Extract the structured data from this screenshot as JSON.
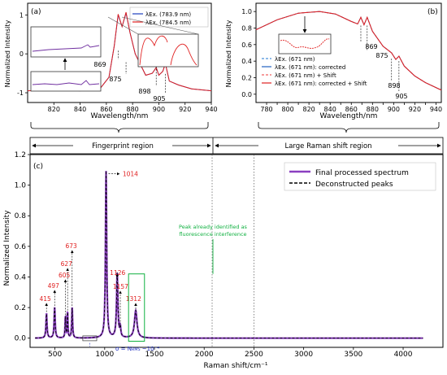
{
  "chart_data": [
    {
      "panel_label": "(a)",
      "type": "line",
      "xlabel": "Wavelength/nm",
      "ylabel": "Normalized Intensity",
      "xlim": [
        800,
        940
      ],
      "ylim": [
        -1.25,
        1.3
      ],
      "xticks": [
        820,
        840,
        860,
        880,
        900,
        920,
        940
      ],
      "yticks": [
        -1,
        0,
        1
      ],
      "legend_position": "top-right",
      "series": [
        {
          "name": "λEx. (783.9 nm)",
          "color": "#1f3fbf",
          "x": [
            800,
            820,
            840,
            855,
            862,
            866,
            869,
            872,
            875,
            878,
            882,
            890,
            895,
            898,
            900,
            903,
            905,
            908,
            915,
            925,
            940
          ],
          "y": [
            -0.95,
            -0.92,
            -0.95,
            -0.9,
            -0.6,
            0.2,
            1.0,
            0.7,
            1.05,
            0.55,
            0.0,
            -0.55,
            -0.5,
            -0.35,
            -0.55,
            -0.45,
            -0.25,
            -0.7,
            -0.8,
            -0.9,
            -0.95
          ]
        },
        {
          "name": "λEx. (784.5 nm)",
          "color": "#e02020",
          "x": [
            800,
            820,
            840,
            855,
            862,
            866,
            869,
            872,
            875,
            878,
            882,
            890,
            895,
            898,
            900,
            903,
            905,
            908,
            915,
            925,
            940
          ],
          "y": [
            -0.95,
            -0.92,
            -0.95,
            -0.9,
            -0.6,
            0.2,
            1.02,
            0.7,
            1.07,
            0.55,
            0.0,
            -0.55,
            -0.5,
            -0.35,
            -0.55,
            -0.45,
            -0.25,
            -0.7,
            -0.8,
            -0.9,
            -0.95
          ]
        }
      ],
      "annotations": [
        "869",
        "875",
        "898",
        "905"
      ]
    },
    {
      "panel_label": "(b)",
      "type": "line",
      "xlabel": "Wavelength/nm",
      "ylabel": "Normalized Intensity",
      "xlim": [
        770,
        945
      ],
      "ylim": [
        -0.1,
        1.1
      ],
      "xticks": [
        780,
        790,
        800,
        810,
        820,
        830,
        840,
        850,
        860,
        870,
        880,
        890,
        900,
        910,
        920,
        930,
        940
      ],
      "yticks": [
        0.0,
        0.2,
        0.4,
        0.6,
        0.8,
        1.0
      ],
      "legend_position": "bottom-left",
      "series": [
        {
          "name": "λEx. (671 nm)",
          "color": "#4a90d9",
          "style": "dashed",
          "x": [
            770,
            790,
            810,
            830,
            845,
            860,
            866,
            869,
            872,
            875,
            880,
            890,
            898,
            902,
            905,
            910,
            920,
            930,
            945
          ],
          "y": [
            0.78,
            0.9,
            0.98,
            1.0,
            0.97,
            0.88,
            0.85,
            0.93,
            0.84,
            0.93,
            0.76,
            0.58,
            0.5,
            0.42,
            0.46,
            0.34,
            0.22,
            0.14,
            0.05
          ]
        },
        {
          "name": "λEx. (671 nm): corrected",
          "color": "#2060c0",
          "x": [
            770,
            790,
            810,
            830,
            845,
            860,
            866,
            869,
            872,
            875,
            880,
            890,
            898,
            902,
            905,
            910,
            920,
            930,
            945
          ],
          "y": [
            0.78,
            0.9,
            0.98,
            1.0,
            0.97,
            0.88,
            0.85,
            0.93,
            0.84,
            0.93,
            0.76,
            0.58,
            0.5,
            0.42,
            0.46,
            0.34,
            0.22,
            0.14,
            0.05
          ]
        },
        {
          "name": "λEx. (671 nm) + Shift",
          "color": "#f06060",
          "style": "dashed",
          "x": [
            770,
            790,
            810,
            830,
            845,
            860,
            866,
            869,
            872,
            875,
            880,
            890,
            898,
            902,
            905,
            910,
            920,
            930,
            945
          ],
          "y": [
            0.78,
            0.9,
            0.98,
            1.0,
            0.97,
            0.88,
            0.85,
            0.93,
            0.84,
            0.93,
            0.76,
            0.58,
            0.5,
            0.42,
            0.46,
            0.34,
            0.22,
            0.14,
            0.05
          ]
        },
        {
          "name": "λEx. (671 nm): corrected + Shift",
          "color": "#e02020",
          "x": [
            770,
            790,
            810,
            830,
            845,
            860,
            866,
            869,
            872,
            875,
            880,
            890,
            898,
            902,
            905,
            910,
            920,
            930,
            945
          ],
          "y": [
            0.78,
            0.9,
            0.98,
            1.0,
            0.97,
            0.88,
            0.85,
            0.93,
            0.84,
            0.93,
            0.76,
            0.58,
            0.5,
            0.42,
            0.46,
            0.34,
            0.22,
            0.14,
            0.05
          ]
        }
      ],
      "annotations": [
        "869",
        "875",
        "898",
        "905"
      ]
    },
    {
      "panel_label": "(c)",
      "type": "line",
      "xlabel": "Raman shift/cm⁻¹",
      "ylabel": "Normalized Intensity",
      "xlim": [
        250,
        4400
      ],
      "ylim": [
        -0.06,
        1.2
      ],
      "xticks": [
        500,
        1000,
        1500,
        2000,
        2500,
        3000,
        3500,
        4000
      ],
      "yticks": [
        0.0,
        0.2,
        0.4,
        0.6,
        0.8,
        1.0,
        1.2
      ],
      "legend_position": "top-right",
      "series": [
        {
          "name": "Final processed spectrum",
          "color": "#8a3fc0"
        },
        {
          "name": "Deconstructed peaks",
          "color": "#000000",
          "style": "dashed"
        }
      ],
      "peaks": [
        {
          "x": 415,
          "y": 0.16,
          "label": "415"
        },
        {
          "x": 497,
          "y": 0.2,
          "label": "497"
        },
        {
          "x": 605,
          "y": 0.14,
          "label": "605"
        },
        {
          "x": 627,
          "y": 0.17,
          "label": "627"
        },
        {
          "x": 673,
          "y": 0.2,
          "label": "673"
        },
        {
          "x": 1014,
          "y": 1.09,
          "label": "1014"
        },
        {
          "x": 1126,
          "y": 0.42,
          "label": "1126"
        },
        {
          "x": 1157,
          "y": 0.06,
          "label": "1157"
        },
        {
          "x": 1312,
          "y": 0.18,
          "label": "1312"
        }
      ],
      "regions": [
        {
          "label": "Fingerprint region"
        },
        {
          "label": "Large Raman shift region"
        }
      ],
      "region_boundaries": [
        2080,
        2500
      ],
      "annotations": [
        "Peak already identified as",
        "fluorescence interference",
        "σ = N",
        "RMS",
        " ~10⁻⁴"
      ]
    }
  ]
}
